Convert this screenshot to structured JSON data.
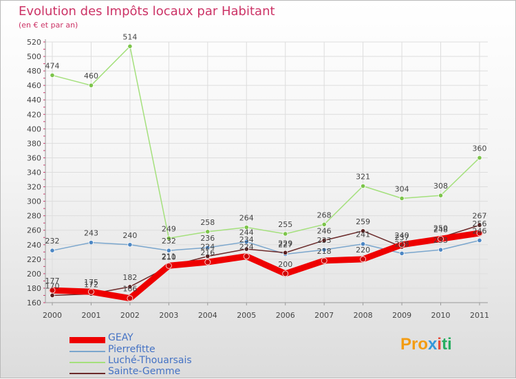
{
  "header": {
    "title": "Evolution des Impôts locaux par Habitant",
    "subtitle": "(en € et par an)"
  },
  "colors": {
    "title": "#cc3366",
    "grid": "#dddddd",
    "axis": "#999999",
    "label": "#444444",
    "legend_text": "#4472c4"
  },
  "chart_data": {
    "type": "line",
    "title": "Evolution des Impôts locaux par Habitant",
    "ylabel": "(en € et par an)",
    "xlabel": "",
    "x": [
      "2000",
      "2001",
      "2002",
      "2003",
      "2004",
      "2005",
      "2006",
      "2007",
      "2008",
      "2009",
      "2010",
      "2011"
    ],
    "ylim": [
      160,
      520
    ],
    "yticks": [
      160,
      180,
      200,
      220,
      240,
      260,
      280,
      300,
      320,
      340,
      360,
      380,
      400,
      420,
      440,
      460,
      480,
      500,
      520
    ],
    "grid": true,
    "legend_position": "bottom-left",
    "series": [
      {
        "name": "GEAY",
        "color": "#ee0000",
        "marker": "#cc0000",
        "values": [
          177,
          175,
          166,
          211,
          216,
          224,
          200,
          218,
          220,
          240,
          248,
          256
        ],
        "labels": [
          "177",
          "175",
          "166",
          "211",
          "216",
          "224",
          "200",
          "218",
          "220",
          "240",
          "248",
          "256"
        ]
      },
      {
        "name": "Pierrefitte",
        "color": "#7aa6cd",
        "marker": "#4d87c4",
        "values": [
          232,
          243,
          240,
          232,
          236,
          244,
          227,
          233,
          241,
          228,
          233,
          246
        ],
        "labels": [
          "232",
          "243",
          "240",
          "232",
          "236",
          "244",
          "227",
          "233",
          "241",
          "228",
          "233",
          "246"
        ]
      },
      {
        "name": "Luché-Thouarsais",
        "color": "#a4e07c",
        "marker": "#7cc44a",
        "values": [
          474,
          460,
          514,
          249,
          258,
          264,
          255,
          268,
          321,
          304,
          308,
          360
        ],
        "labels": [
          "474",
          "460",
          "514",
          "249",
          "258",
          "264",
          "255",
          "268",
          "321",
          "304",
          "308",
          "360"
        ]
      },
      {
        "name": "Sainte-Gemme",
        "color": "#6b2a2a",
        "marker": "#5a1f1f",
        "values": [
          170,
          172,
          182,
          210,
          224,
          234,
          229,
          246,
          259,
          237,
          250,
          267
        ],
        "labels": [
          "170",
          "172",
          "182",
          "210",
          "224",
          "234",
          "229",
          "246",
          "259",
          "237",
          "250",
          "267"
        ]
      }
    ]
  },
  "legend": [
    {
      "label": "GEAY"
    },
    {
      "label": "Pierrefitte"
    },
    {
      "label": "Luché-Thouarsais"
    },
    {
      "label": "Sainte-Gemme"
    }
  ],
  "logo": {
    "letters": [
      "P",
      "r",
      "o",
      "x",
      "i",
      "t",
      "i"
    ],
    "colors": [
      "#f39c12",
      "#f39c12",
      "#f39c12",
      "#3498db",
      "#e74c3c",
      "#27ae60",
      "#27ae60"
    ]
  }
}
